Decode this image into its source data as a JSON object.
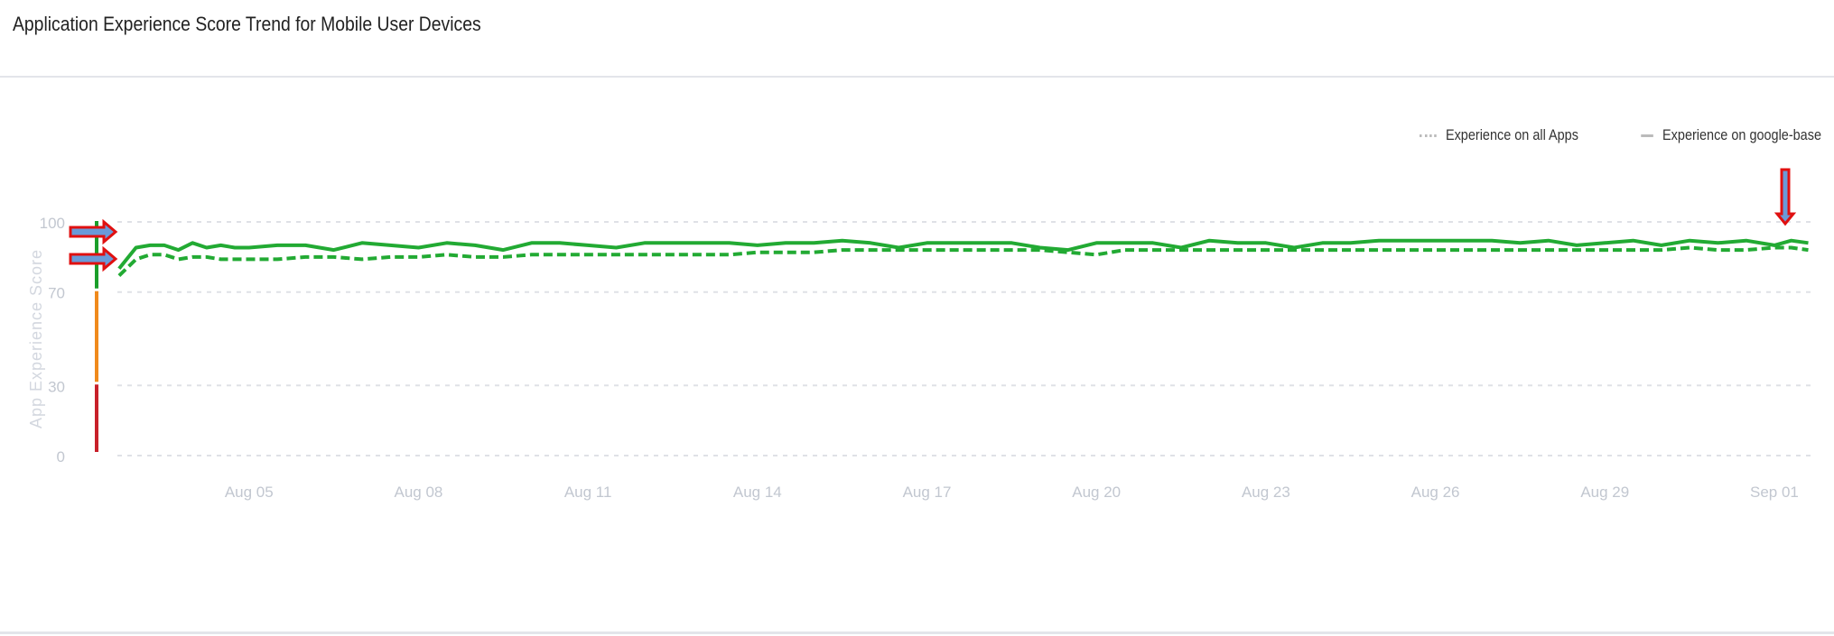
{
  "header": {
    "title": "Application Experience Score Trend for Mobile User Devices"
  },
  "chart_data": {
    "type": "line",
    "title": "Application Experience Score Trend for Mobile User Devices",
    "ylabel": "App Experience Score",
    "xlabel": "",
    "ylim": [
      0,
      100
    ],
    "yticks": [
      "0",
      "30",
      "70",
      "100"
    ],
    "ytick_values": [
      0,
      30,
      70,
      100
    ],
    "xticks": [
      "Aug 05",
      "Aug 08",
      "Aug 11",
      "Aug 14",
      "Aug 17",
      "Aug 20",
      "Aug 23",
      "Aug 26",
      "Aug 29",
      "Sep 01"
    ],
    "xtick_days": [
      5,
      8,
      11,
      14,
      17,
      20,
      23,
      26,
      29,
      32
    ],
    "xlim_days": [
      2.67,
      32.64
    ],
    "grid": "horizontal dashed",
    "legend_position": "top-right",
    "score_bands": [
      {
        "range": [
          70,
          100
        ],
        "color": "#1a9e2a"
      },
      {
        "range": [
          30,
          70
        ],
        "color": "#f08a1c"
      },
      {
        "range": [
          0,
          30
        ],
        "color": "#c8202a"
      }
    ],
    "line_color": "#22aa33",
    "x_days": [
      2.7,
      3.0,
      3.25,
      3.5,
      3.75,
      4.0,
      4.25,
      4.5,
      4.75,
      5.0,
      5.5,
      6.0,
      6.5,
      7.0,
      7.5,
      8.0,
      8.5,
      9.0,
      9.5,
      10.0,
      10.5,
      11.0,
      11.5,
      12.0,
      12.5,
      13.0,
      13.5,
      14.0,
      14.5,
      15.0,
      15.5,
      16.0,
      16.5,
      17.0,
      17.5,
      18.0,
      18.5,
      19.0,
      19.5,
      20.0,
      20.5,
      21.0,
      21.5,
      22.0,
      22.5,
      23.0,
      23.5,
      24.0,
      24.5,
      25.0,
      25.5,
      26.0,
      26.5,
      27.0,
      27.5,
      28.0,
      28.5,
      29.0,
      29.5,
      30.0,
      30.5,
      31.0,
      31.5,
      32.0,
      32.3,
      32.6
    ],
    "series": [
      {
        "name": "Experience on all Apps",
        "style": "dashed",
        "values": [
          77,
          84,
          86,
          86,
          84,
          85,
          85,
          84,
          84,
          84,
          84,
          85,
          85,
          84,
          85,
          85,
          86,
          85,
          85,
          86,
          86,
          86,
          86,
          86,
          86,
          86,
          86,
          87,
          87,
          87,
          88,
          88,
          88,
          88,
          88,
          88,
          88,
          88,
          87,
          86,
          88,
          88,
          88,
          88,
          88,
          88,
          88,
          88,
          88,
          88,
          88,
          88,
          88,
          88,
          88,
          88,
          88,
          88,
          88,
          88,
          89,
          88,
          88,
          89,
          89,
          88
        ]
      },
      {
        "name": "Experience on google-base",
        "style": "solid",
        "values": [
          80,
          89,
          90,
          90,
          88,
          91,
          89,
          90,
          89,
          89,
          90,
          90,
          88,
          91,
          90,
          89,
          91,
          90,
          88,
          91,
          91,
          90,
          89,
          91,
          91,
          91,
          91,
          90,
          91,
          91,
          92,
          91,
          89,
          91,
          91,
          91,
          91,
          89,
          88,
          91,
          91,
          91,
          89,
          92,
          91,
          91,
          89,
          91,
          91,
          92,
          92,
          92,
          92,
          92,
          91,
          92,
          90,
          91,
          92,
          90,
          92,
          91,
          92,
          90,
          92,
          91
        ]
      }
    ]
  }
}
